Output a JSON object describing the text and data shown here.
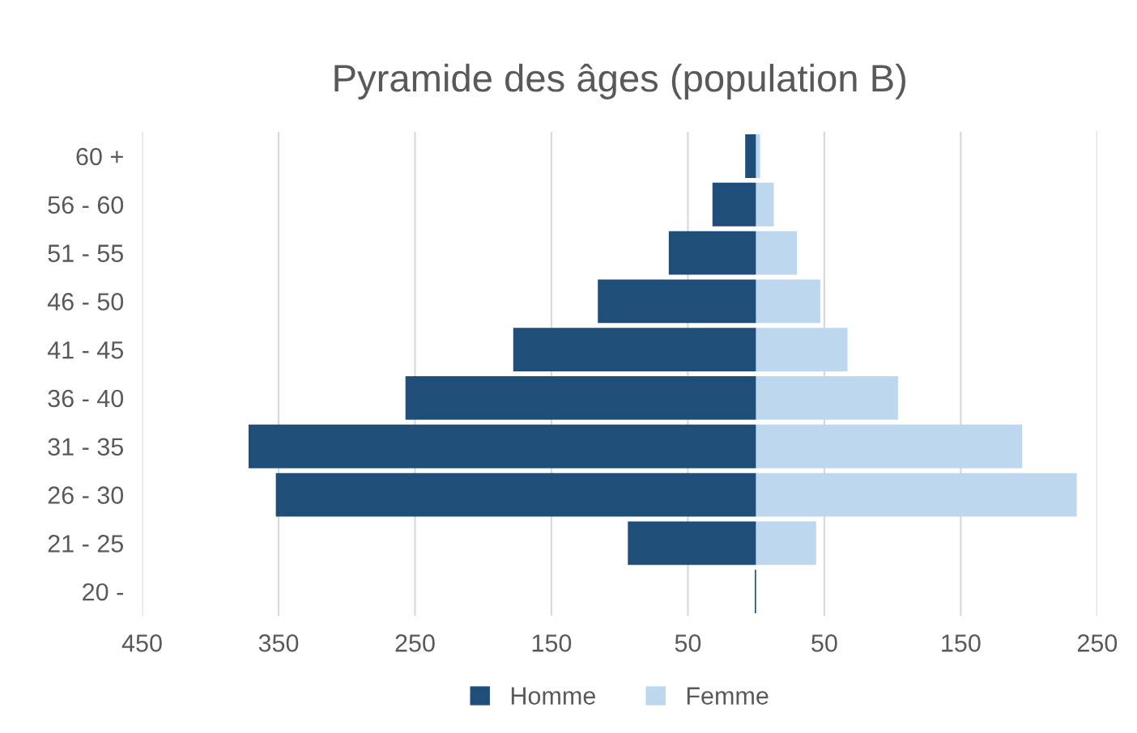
{
  "chart_data": {
    "type": "bar",
    "orientation": "horizontal",
    "title": "Pyramide des âges (population B)",
    "categories": [
      "60 +",
      "56 - 60",
      "51 - 55",
      "46 - 50",
      "41 - 45",
      "36 - 40",
      "31 - 35",
      "26 - 30",
      "21 - 25",
      "20 -"
    ],
    "series": [
      {
        "name": "Homme",
        "color": "#1f4e79",
        "values": [
          -8,
          -32,
          -64,
          -116,
          -178,
          -257,
          -372,
          -352,
          -94,
          -1
        ]
      },
      {
        "name": "Femme",
        "color": "#bdd7ee",
        "values": [
          3,
          13,
          30,
          47,
          67,
          104,
          195,
          235,
          44,
          0
        ]
      }
    ],
    "xlim": [
      -450,
      250
    ],
    "xticks": [
      {
        "value": -450,
        "label": "450"
      },
      {
        "value": -350,
        "label": "350"
      },
      {
        "value": -250,
        "label": "250"
      },
      {
        "value": -150,
        "label": "150"
      },
      {
        "value": -50,
        "label": "50"
      },
      50,
      150,
      250
    ],
    "grid": "x",
    "legend": "bottom",
    "stacked": true
  }
}
